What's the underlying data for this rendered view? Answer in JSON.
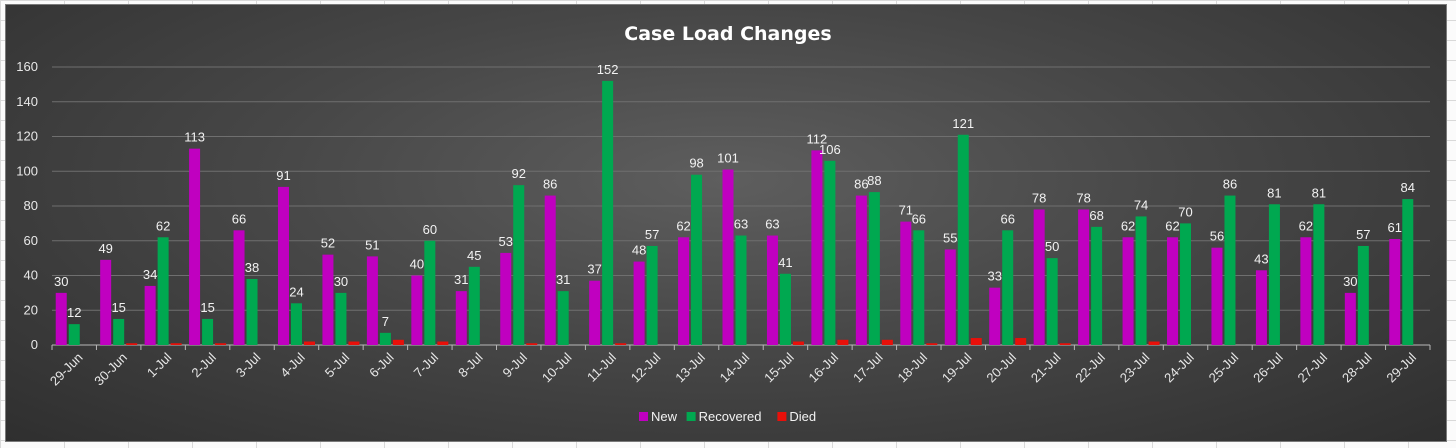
{
  "chart_data": {
    "type": "bar",
    "title": "Case Load Changes",
    "ylim": [
      0,
      160
    ],
    "yticks": [
      0,
      20,
      40,
      60,
      80,
      100,
      120,
      140,
      160
    ],
    "grid": true,
    "legend_position": "bottom",
    "categories": [
      "29-Jun",
      "30-Jun",
      "1-Jul",
      "2-Jul",
      "3-Jul",
      "4-Jul",
      "5-Jul",
      "6-Jul",
      "7-Jul",
      "8-Jul",
      "9-Jul",
      "10-Jul",
      "11-Jul",
      "12-Jul",
      "13-Jul",
      "14-Jul",
      "15-Jul",
      "16-Jul",
      "17-Jul",
      "18-Jul",
      "19-Jul",
      "20-Jul",
      "21-Jul",
      "22-Jul",
      "23-Jul",
      "24-Jul",
      "25-Jul",
      "26-Jul",
      "27-Jul",
      "28-Jul",
      "29-Jul"
    ],
    "series": [
      {
        "name": "New",
        "color": "#c000c0",
        "show_labels": true,
        "values": [
          30,
          49,
          34,
          113,
          66,
          91,
          52,
          51,
          40,
          31,
          53,
          86,
          37,
          48,
          62,
          101,
          63,
          112,
          86,
          71,
          55,
          33,
          78,
          78,
          62,
          62,
          56,
          43,
          62,
          30,
          61
        ]
      },
      {
        "name": "Recovered",
        "color": "#00a850",
        "show_labels": true,
        "values": [
          12,
          15,
          62,
          15,
          38,
          24,
          30,
          7,
          60,
          45,
          92,
          31,
          152,
          57,
          98,
          63,
          41,
          106,
          88,
          66,
          121,
          66,
          50,
          68,
          74,
          70,
          86,
          81,
          81,
          57,
          84
        ]
      },
      {
        "name": "Died",
        "color": "#e8100a",
        "show_labels": false,
        "values": [
          0,
          1,
          1,
          1,
          0,
          2,
          2,
          3,
          2,
          0,
          1,
          0,
          1,
          0,
          0,
          0,
          2,
          3,
          3,
          1,
          4,
          4,
          1,
          0,
          2,
          0,
          0,
          0,
          0,
          0,
          0
        ]
      }
    ]
  }
}
